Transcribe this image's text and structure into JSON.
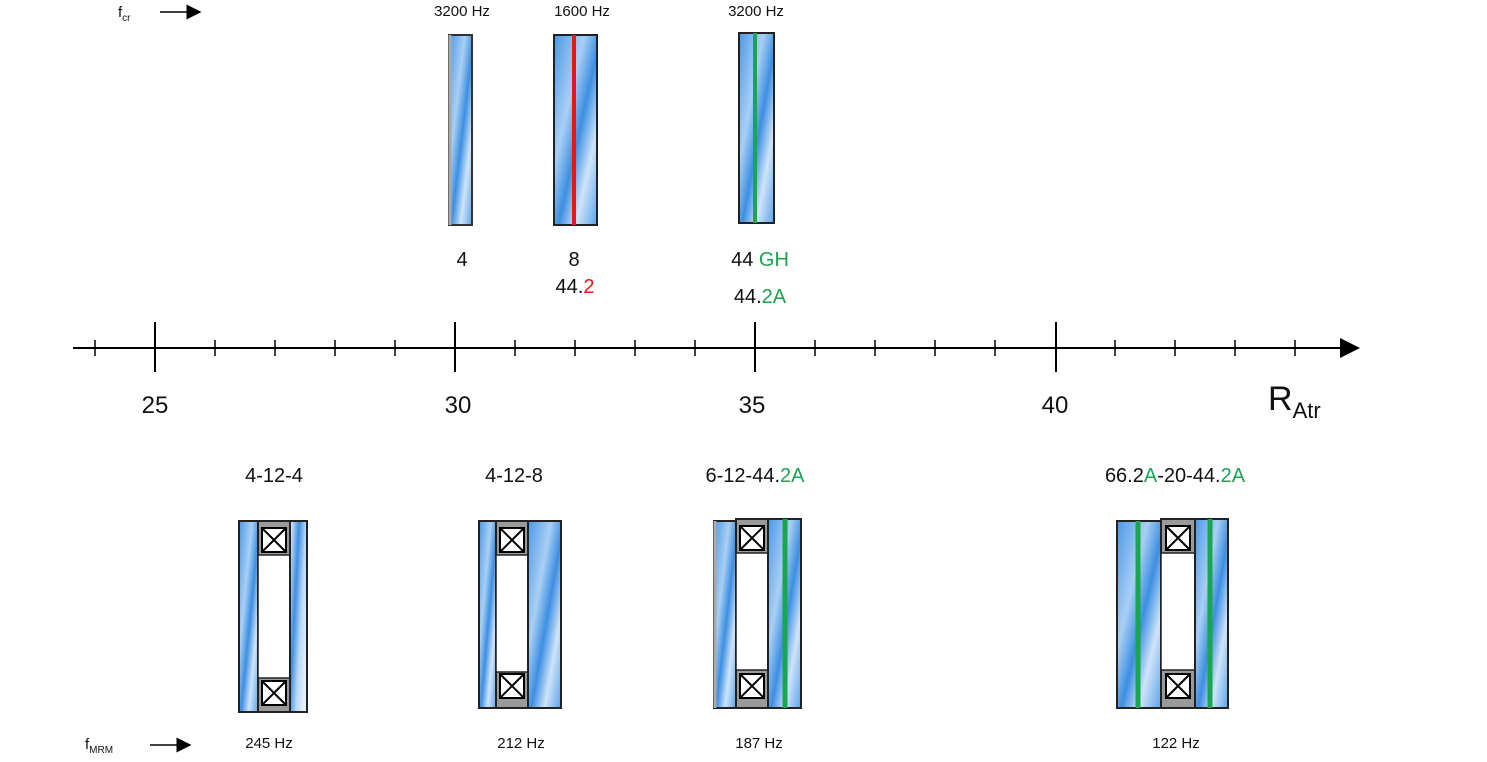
{
  "colors": {
    "glass_light": "#dbeaf8",
    "glass_blue": "#2f86dd",
    "spacer": "#9a9a9a",
    "pvb_red": "#e8151b",
    "pvb_green": "#19a64f",
    "axis": "#000000"
  },
  "top_row": {
    "fcr_label": "f",
    "fcr_sub": "cr",
    "items": [
      {
        "freq": "3200 Hz",
        "name_line1": "4",
        "name_line2_prefix": "",
        "name_line2_accent": ""
      },
      {
        "freq": "1600 Hz",
        "name_line1": "8",
        "name_line2_prefix": "44.",
        "name_line2_accent": "2"
      },
      {
        "freq": "3200 Hz",
        "name_line1_prefix": "44 ",
        "name_line1_accent": "GH",
        "name_line2_prefix": "44.",
        "name_line2_accent": "2A"
      }
    ]
  },
  "axis": {
    "ticks": [
      "25",
      "30",
      "35",
      "40"
    ],
    "label": "R",
    "label_sub": "Atr"
  },
  "bottom_row": {
    "fmrm_label": "f",
    "fmrm_sub": "MRM",
    "items": [
      {
        "title": "4-12-4",
        "freq": "245 Hz"
      },
      {
        "title": "4-12-8",
        "freq": "212 Hz"
      },
      {
        "title_prefix": "6-12-44.",
        "title_accent": "2A",
        "freq": "187 Hz"
      },
      {
        "title_p1": "66.2",
        "title_a1": "A",
        "title_p2": "-20-44.",
        "title_a2": "2A",
        "freq": "122 Hz"
      }
    ]
  }
}
